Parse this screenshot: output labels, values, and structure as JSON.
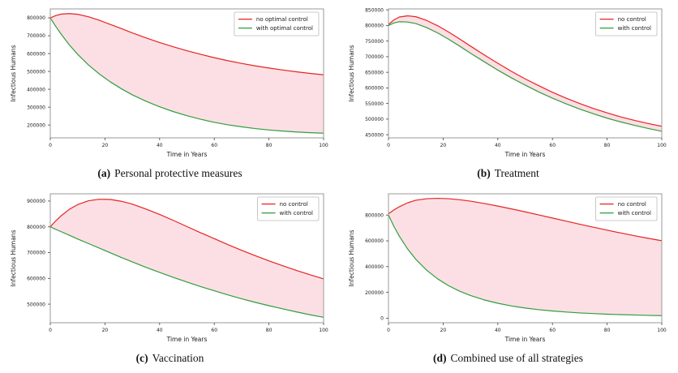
{
  "figure_title": "",
  "ylabel_shared": "Infectious Humans",
  "xlabel_shared": "Time in Years",
  "chart_data": [
    {
      "key": "a",
      "type": "line",
      "caption": {
        "label": "(a)",
        "text": "Personal protective measures"
      },
      "xlabel": "Time in Years",
      "ylabel": "Infectious Humans",
      "xlim": [
        0,
        100
      ],
      "xticks": [
        0,
        20,
        40,
        60,
        80,
        100
      ],
      "ylim": [
        128000,
        850000
      ],
      "yticks": [
        200000,
        300000,
        400000,
        500000,
        600000,
        700000,
        800000
      ],
      "grid": false,
      "legend_position": "top-right",
      "fill_between": {
        "upper": 0,
        "lower": 1,
        "color": "#fcdfe5"
      },
      "x": [
        0,
        2,
        4,
        7,
        10,
        14,
        18,
        22,
        26,
        30,
        35,
        40,
        45,
        50,
        55,
        60,
        65,
        70,
        75,
        80,
        85,
        90,
        95,
        100
      ],
      "series": [
        {
          "name": "no optimal control",
          "color": "#e62420",
          "values": [
            800000,
            813000,
            821000,
            824000,
            820000,
            806000,
            786000,
            763000,
            740000,
            716000,
            688000,
            662000,
            638000,
            616000,
            596000,
            577000,
            560000,
            545000,
            531000,
            519000,
            508000,
            498000,
            489000,
            481000
          ]
        },
        {
          "name": "with optimal control",
          "color": "#2f9e3c",
          "values": [
            800000,
            752000,
            708000,
            648000,
            596000,
            536000,
            485000,
            441000,
            403000,
            369000,
            333000,
            302000,
            275000,
            252000,
            232000,
            215000,
            201000,
            190000,
            180000,
            172000,
            166000,
            161000,
            157000,
            154000
          ]
        }
      ]
    },
    {
      "key": "b",
      "type": "line",
      "caption": {
        "label": "(b)",
        "text": "Treatment"
      },
      "xlabel": "Time in Years",
      "ylabel": "Infectious Humans",
      "xlim": [
        0,
        100
      ],
      "xticks": [
        0,
        20,
        40,
        60,
        80,
        100
      ],
      "ylim": [
        440000,
        853000
      ],
      "yticks": [
        450000,
        500000,
        550000,
        600000,
        650000,
        700000,
        750000,
        800000,
        850000
      ],
      "grid": false,
      "legend_position": "top-right",
      "fill_between": {
        "upper": 0,
        "lower": 1,
        "color": "#fcdfe5"
      },
      "x": [
        0,
        2,
        4,
        7,
        10,
        14,
        18,
        22,
        26,
        30,
        35,
        40,
        45,
        50,
        55,
        60,
        65,
        70,
        75,
        80,
        85,
        90,
        95,
        100
      ],
      "series": [
        {
          "name": "no control",
          "color": "#e62420",
          "values": [
            803000,
            818000,
            827000,
            831000,
            828000,
            816000,
            799000,
            779000,
            757000,
            734000,
            706000,
            679000,
            653000,
            629000,
            607000,
            586000,
            567000,
            550000,
            534000,
            520000,
            507000,
            496000,
            486000,
            477000
          ]
        },
        {
          "name": "with control",
          "color": "#2f9e3c",
          "values": [
            800000,
            808000,
            812000,
            811000,
            806000,
            793000,
            776000,
            756000,
            734000,
            711000,
            684000,
            657000,
            632000,
            609000,
            587000,
            567000,
            549000,
            532000,
            517000,
            503000,
            491000,
            480000,
            470000,
            461000
          ]
        }
      ]
    },
    {
      "key": "c",
      "type": "line",
      "caption": {
        "label": "(c)",
        "text": "Vaccination"
      },
      "xlabel": "Time in Years",
      "ylabel": "Infectious Humans",
      "xlim": [
        0,
        100
      ],
      "xticks": [
        0,
        20,
        40,
        60,
        80,
        100
      ],
      "ylim": [
        428000,
        928000
      ],
      "yticks": [
        500000,
        600000,
        700000,
        800000,
        900000
      ],
      "grid": false,
      "legend_position": "top-right",
      "fill_between": {
        "upper": 0,
        "lower": 1,
        "color": "#fcdfe5"
      },
      "x": [
        0,
        2,
        4,
        7,
        10,
        14,
        18,
        22,
        26,
        30,
        35,
        40,
        45,
        50,
        55,
        60,
        65,
        70,
        75,
        80,
        85,
        90,
        95,
        100
      ],
      "series": [
        {
          "name": "no control",
          "color": "#e62420",
          "values": [
            800000,
            823000,
            843000,
            868000,
            886000,
            901000,
            907000,
            906000,
            899000,
            888000,
            869000,
            848000,
            825000,
            801000,
            777000,
            754000,
            731000,
            709000,
            688000,
            668000,
            649000,
            631000,
            614000,
            598000
          ]
        },
        {
          "name": "with control",
          "color": "#2f9e3c",
          "values": [
            800000,
            790000,
            781000,
            767000,
            753000,
            735000,
            717000,
            699000,
            681000,
            664000,
            643000,
            623000,
            604000,
            586000,
            568000,
            552000,
            536000,
            521000,
            507000,
            494000,
            482000,
            470000,
            459000,
            449000
          ]
        }
      ]
    },
    {
      "key": "d",
      "type": "line",
      "caption": {
        "label": "(d)",
        "text": "Combined use of all strategies"
      },
      "xlabel": "Time in Years",
      "ylabel": "Infectious Humans",
      "xlim": [
        0,
        100
      ],
      "xticks": [
        0,
        20,
        40,
        60,
        80,
        100
      ],
      "ylim": [
        -35000,
        965000
      ],
      "yticks": [
        0,
        200000,
        400000,
        600000,
        800000
      ],
      "grid": false,
      "legend_position": "top-right",
      "fill_between": {
        "upper": 0,
        "lower": 1,
        "color": "#fcdfe5"
      },
      "x": [
        0,
        2,
        4,
        7,
        10,
        14,
        18,
        22,
        26,
        30,
        35,
        40,
        45,
        50,
        55,
        60,
        65,
        70,
        75,
        80,
        85,
        90,
        95,
        100
      ],
      "series": [
        {
          "name": "no control",
          "color": "#e62420",
          "values": [
            810000,
            840000,
            865000,
            895000,
            915000,
            927000,
            930000,
            927000,
            919000,
            908000,
            890000,
            870000,
            848000,
            825000,
            801000,
            777000,
            753000,
            729000,
            706000,
            683000,
            661000,
            640000,
            620000,
            601000
          ]
        },
        {
          "name": "with control",
          "color": "#2f9e3c",
          "values": [
            800000,
            712000,
            635000,
            537000,
            457000,
            372000,
            305000,
            252000,
            210000,
            176000,
            142000,
            116000,
            95000,
            79000,
            66000,
            56000,
            48000,
            41000,
            36000,
            31000,
            28000,
            25000,
            22000,
            20000
          ]
        }
      ]
    }
  ],
  "style": {
    "spine_color": "#9a9a9a",
    "tick_color": "#444444",
    "text_color": "#1a1a1a",
    "legend_border": "#bbbbbb",
    "legend_bg": "#ffffff"
  }
}
